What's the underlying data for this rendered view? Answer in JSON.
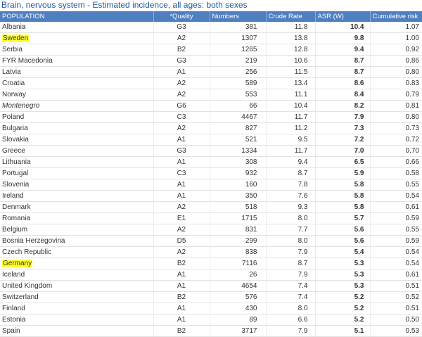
{
  "title": "Brain, nervous system - Estimated incidence, all ages: both sexes",
  "highlight_color": "#ffff33",
  "header_color": "#4f7fc0",
  "columns": [
    "POPULATION",
    "*Quality",
    "Numbers",
    "Crude Rate",
    "ASR (W)",
    "Cumulative risk"
  ],
  "rows": [
    {
      "population": "Albania",
      "quality": "G3",
      "numbers": "381",
      "crude": "11.8",
      "asr": "10.4",
      "cum": "1.07"
    },
    {
      "population": "Sweden",
      "quality": "A2",
      "numbers": "1307",
      "crude": "13.8",
      "asr": "9.8",
      "cum": "1.00",
      "highlight": true
    },
    {
      "population": "Serbia",
      "quality": "B2",
      "numbers": "1265",
      "crude": "12.8",
      "asr": "9.4",
      "cum": "0.92"
    },
    {
      "population": "FYR Macedonia",
      "quality": "G3",
      "numbers": "219",
      "crude": "10.6",
      "asr": "8.7",
      "cum": "0.86"
    },
    {
      "population": "Latvia",
      "quality": "A1",
      "numbers": "256",
      "crude": "11.5",
      "asr": "8.7",
      "cum": "0.80"
    },
    {
      "population": "Croatia",
      "quality": "A2",
      "numbers": "589",
      "crude": "13.4",
      "asr": "8.6",
      "cum": "0.83"
    },
    {
      "population": "Norway",
      "quality": "A2",
      "numbers": "553",
      "crude": "11.1",
      "asr": "8.4",
      "cum": "0.79"
    },
    {
      "population": "Montenegro",
      "quality": "G6",
      "numbers": "66",
      "crude": "10.4",
      "asr": "8.2",
      "cum": "0.81",
      "italic": true
    },
    {
      "population": "Poland",
      "quality": "C3",
      "numbers": "4467",
      "crude": "11.7",
      "asr": "7.9",
      "cum": "0.80"
    },
    {
      "population": "Bulgaria",
      "quality": "A2",
      "numbers": "827",
      "crude": "11.2",
      "asr": "7.3",
      "cum": "0.73"
    },
    {
      "population": "Slovakia",
      "quality": "A1",
      "numbers": "521",
      "crude": "9.5",
      "asr": "7.2",
      "cum": "0.72"
    },
    {
      "population": "Greece",
      "quality": "G3",
      "numbers": "1334",
      "crude": "11.7",
      "asr": "7.0",
      "cum": "0.70"
    },
    {
      "population": "Lithuania",
      "quality": "A1",
      "numbers": "308",
      "crude": "9.4",
      "asr": "6.5",
      "cum": "0.66"
    },
    {
      "population": "Portugal",
      "quality": "C3",
      "numbers": "932",
      "crude": "8.7",
      "asr": "5.9",
      "cum": "0.58"
    },
    {
      "population": "Slovenia",
      "quality": "A1",
      "numbers": "160",
      "crude": "7.8",
      "asr": "5.8",
      "cum": "0.55"
    },
    {
      "population": "Ireland",
      "quality": "A1",
      "numbers": "350",
      "crude": "7.6",
      "asr": "5.8",
      "cum": "0.54"
    },
    {
      "population": "Denmark",
      "quality": "A2",
      "numbers": "518",
      "crude": "9.3",
      "asr": "5.8",
      "cum": "0.61"
    },
    {
      "population": "Romania",
      "quality": "E1",
      "numbers": "1715",
      "crude": "8.0",
      "asr": "5.7",
      "cum": "0.59"
    },
    {
      "population": "Belgium",
      "quality": "A2",
      "numbers": "831",
      "crude": "7.7",
      "asr": "5.6",
      "cum": "0.55"
    },
    {
      "population": "Bosnia Herzegovina",
      "quality": "D5",
      "numbers": "299",
      "crude": "8.0",
      "asr": "5.6",
      "cum": "0.59"
    },
    {
      "population": "Czech Republic",
      "quality": "A2",
      "numbers": "838",
      "crude": "7.9",
      "asr": "5.4",
      "cum": "0.54"
    },
    {
      "population": "Germany",
      "quality": "B2",
      "numbers": "7116",
      "crude": "8.7",
      "asr": "5.3",
      "cum": "0.54",
      "highlight": true
    },
    {
      "population": "Iceland",
      "quality": "A1",
      "numbers": "26",
      "crude": "7.9",
      "asr": "5.3",
      "cum": "0.61"
    },
    {
      "population": "United Kingdom",
      "quality": "A1",
      "numbers": "4654",
      "crude": "7.4",
      "asr": "5.3",
      "cum": "0.51"
    },
    {
      "population": "Switzerland",
      "quality": "B2",
      "numbers": "576",
      "crude": "7.4",
      "asr": "5.2",
      "cum": "0.52"
    },
    {
      "population": "Finland",
      "quality": "A1",
      "numbers": "430",
      "crude": "8.0",
      "asr": "5.2",
      "cum": "0.51"
    },
    {
      "population": "Estonia",
      "quality": "A1",
      "numbers": "89",
      "crude": "6.6",
      "asr": "5.2",
      "cum": "0.50"
    },
    {
      "population": "Spain",
      "quality": "B2",
      "numbers": "3717",
      "crude": "7.9",
      "asr": "5.1",
      "cum": "0.53"
    }
  ]
}
